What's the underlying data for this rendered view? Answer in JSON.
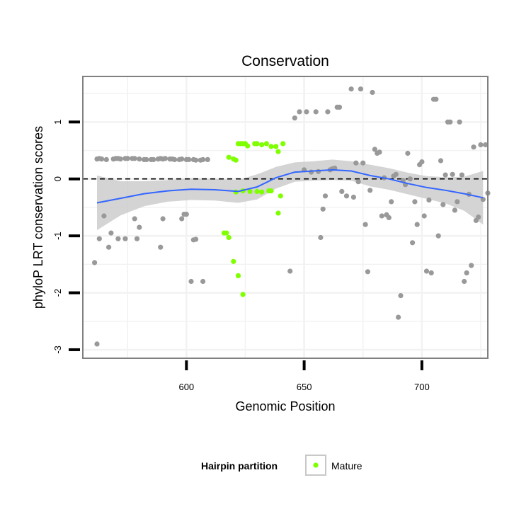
{
  "chart_data": {
    "type": "scatter",
    "title": "Conservation",
    "xlabel": "Genomic Position",
    "ylabel": "phyloP LRT conservation scores",
    "xlim": [
      556,
      728
    ],
    "ylim": [
      -3.15,
      1.8
    ],
    "xticks": [
      600,
      650,
      700
    ],
    "yticks": [
      -3,
      -2,
      -1,
      0,
      1
    ],
    "reference_line": {
      "y": 0,
      "style": "dashed",
      "color": "#000000"
    },
    "grid": true,
    "legend": {
      "title": "Hairpin partition",
      "position": "bottom",
      "entries": [
        "Mature"
      ]
    },
    "colors": {
      "other": "#999999",
      "mature": "#7FFF00",
      "smooth": "#3366FF",
      "ribbon": "#CCCCCC",
      "panel_border": "#808080"
    },
    "series": [
      {
        "name": "Mature",
        "points": [
          [
            618,
            0.38
          ],
          [
            620,
            0.35
          ],
          [
            621,
            0.33
          ],
          [
            622,
            0.62
          ],
          [
            623,
            0.62
          ],
          [
            624,
            0.62
          ],
          [
            625,
            0.62
          ],
          [
            626,
            0.58
          ],
          [
            629,
            0.62
          ],
          [
            630,
            0.62
          ],
          [
            632,
            0.6
          ],
          [
            634,
            0.62
          ],
          [
            636,
            0.57
          ],
          [
            638,
            0.57
          ],
          [
            639,
            0.48
          ],
          [
            641,
            0.62
          ],
          [
            616,
            -0.95
          ],
          [
            617,
            -0.95
          ],
          [
            618,
            -1.03
          ],
          [
            620,
            -1.45
          ],
          [
            622,
            -1.7
          ],
          [
            624,
            -2.03
          ],
          [
            621,
            -0.23
          ],
          [
            624,
            -0.21
          ],
          [
            627,
            -0.22
          ],
          [
            630,
            -0.22
          ],
          [
            632,
            -0.23
          ],
          [
            635,
            -0.21
          ],
          [
            636,
            -0.21
          ],
          [
            639,
            -0.6
          ],
          [
            640,
            -0.3
          ]
        ]
      },
      {
        "name": "",
        "points": [
          [
            562,
            -2.9
          ],
          [
            561,
            -1.47
          ],
          [
            563,
            -1.05
          ],
          [
            565,
            -0.65
          ],
          [
            567,
            -1.2
          ],
          [
            568,
            -0.95
          ],
          [
            571,
            -1.05
          ],
          [
            574,
            -1.05
          ],
          [
            578,
            -0.7
          ],
          [
            579,
            -1.05
          ],
          [
            580,
            -0.85
          ],
          [
            590,
            -0.7
          ],
          [
            589,
            -1.2
          ],
          [
            598,
            -0.7
          ],
          [
            599,
            -0.62
          ],
          [
            600,
            -0.62
          ],
          [
            602,
            -1.8
          ],
          [
            603,
            -1.07
          ],
          [
            604,
            -1.06
          ],
          [
            607,
            -1.8
          ],
          [
            562,
            0.35
          ],
          [
            563,
            0.36
          ],
          [
            564,
            0.35
          ],
          [
            566,
            0.34
          ],
          [
            569,
            0.35
          ],
          [
            570,
            0.36
          ],
          [
            571,
            0.36
          ],
          [
            572,
            0.35
          ],
          [
            574,
            0.36
          ],
          [
            575,
            0.36
          ],
          [
            577,
            0.36
          ],
          [
            578,
            0.36
          ],
          [
            580,
            0.35
          ],
          [
            582,
            0.34
          ],
          [
            583,
            0.34
          ],
          [
            585,
            0.34
          ],
          [
            586,
            0.34
          ],
          [
            588,
            0.35
          ],
          [
            589,
            0.36
          ],
          [
            590,
            0.35
          ],
          [
            591,
            0.36
          ],
          [
            593,
            0.35
          ],
          [
            594,
            0.35
          ],
          [
            595,
            0.34
          ],
          [
            597,
            0.34
          ],
          [
            598,
            0.35
          ],
          [
            600,
            0.34
          ],
          [
            601,
            0.34
          ],
          [
            603,
            0.34
          ],
          [
            604,
            0.33
          ],
          [
            606,
            0.33
          ],
          [
            607,
            0.34
          ],
          [
            609,
            0.34
          ],
          [
            644,
            -1.62
          ],
          [
            646,
            1.07
          ],
          [
            648,
            1.18
          ],
          [
            650,
            0.16
          ],
          [
            651,
            1.18
          ],
          [
            653,
            0.12
          ],
          [
            655,
            1.18
          ],
          [
            656,
            0.13
          ],
          [
            657,
            -1.03
          ],
          [
            658,
            -0.53
          ],
          [
            659,
            -0.3
          ],
          [
            660,
            1.18
          ],
          [
            661,
            0.16
          ],
          [
            662,
            0.18
          ],
          [
            663,
            0.19
          ],
          [
            664,
            1.26
          ],
          [
            665,
            1.26
          ],
          [
            666,
            -0.22
          ],
          [
            668,
            -0.3
          ],
          [
            670,
            1.58
          ],
          [
            671,
            -0.32
          ],
          [
            672,
            0.28
          ],
          [
            673,
            -0.05
          ],
          [
            674,
            1.58
          ],
          [
            675,
            0.28
          ],
          [
            676,
            -0.8
          ],
          [
            677,
            -1.63
          ],
          [
            678,
            -0.2
          ],
          [
            679,
            1.52
          ],
          [
            680,
            0.52
          ],
          [
            681,
            0.45
          ],
          [
            682,
            0.47
          ],
          [
            683,
            -0.65
          ],
          [
            684,
            0.02
          ],
          [
            685,
            -0.63
          ],
          [
            686,
            -0.68
          ],
          [
            687,
            -0.4
          ],
          [
            688,
            0.05
          ],
          [
            689,
            0.08
          ],
          [
            690,
            -2.43
          ],
          [
            691,
            -2.05
          ],
          [
            692,
            -0.03
          ],
          [
            693,
            -0.1
          ],
          [
            694,
            0.45
          ],
          [
            695,
            0.0
          ],
          [
            696,
            -1.12
          ],
          [
            697,
            -0.4
          ],
          [
            698,
            -0.8
          ],
          [
            699,
            0.25
          ],
          [
            700,
            0.3
          ],
          [
            701,
            -0.65
          ],
          [
            702,
            -1.62
          ],
          [
            703,
            -0.37
          ],
          [
            704,
            -1.65
          ],
          [
            705,
            1.4
          ],
          [
            706,
            1.4
          ],
          [
            707,
            -1.0
          ],
          [
            708,
            0.32
          ],
          [
            709,
            -0.45
          ],
          [
            710,
            0.07
          ],
          [
            711,
            1.0
          ],
          [
            712,
            1.0
          ],
          [
            713,
            0.08
          ],
          [
            714,
            -0.55
          ],
          [
            715,
            -0.4
          ],
          [
            716,
            1.0
          ],
          [
            717,
            0.07
          ],
          [
            718,
            -1.8
          ],
          [
            719,
            -1.65
          ],
          [
            720,
            -0.27
          ],
          [
            721,
            -1.52
          ],
          [
            722,
            0.56
          ],
          [
            723,
            -0.73
          ],
          [
            724,
            -0.67
          ],
          [
            725,
            0.6
          ],
          [
            726,
            -0.36
          ],
          [
            727,
            0.6
          ],
          [
            728,
            -0.25
          ]
        ]
      }
    ],
    "smooth": {
      "x": [
        562,
        572,
        582,
        592,
        602,
        612,
        622,
        630,
        638,
        646,
        654,
        662,
        670,
        678,
        686,
        694,
        702,
        710,
        718,
        726
      ],
      "y": [
        -0.42,
        -0.34,
        -0.26,
        -0.21,
        -0.18,
        -0.19,
        -0.22,
        -0.14,
        0.02,
        0.12,
        0.14,
        0.16,
        0.14,
        0.06,
        0.0,
        -0.08,
        -0.15,
        -0.2,
        -0.26,
        -0.33
      ],
      "lower": [
        -0.9,
        -0.64,
        -0.48,
        -0.4,
        -0.37,
        -0.38,
        -0.42,
        -0.36,
        -0.17,
        -0.05,
        -0.03,
        -0.02,
        -0.03,
        -0.13,
        -0.19,
        -0.27,
        -0.35,
        -0.43,
        -0.56,
        -0.8
      ],
      "upper": [
        0.06,
        -0.04,
        -0.04,
        -0.02,
        0.01,
        0.0,
        -0.02,
        0.08,
        0.21,
        0.29,
        0.31,
        0.34,
        0.31,
        0.25,
        0.19,
        0.11,
        0.05,
        0.03,
        0.04,
        0.14
      ]
    }
  }
}
